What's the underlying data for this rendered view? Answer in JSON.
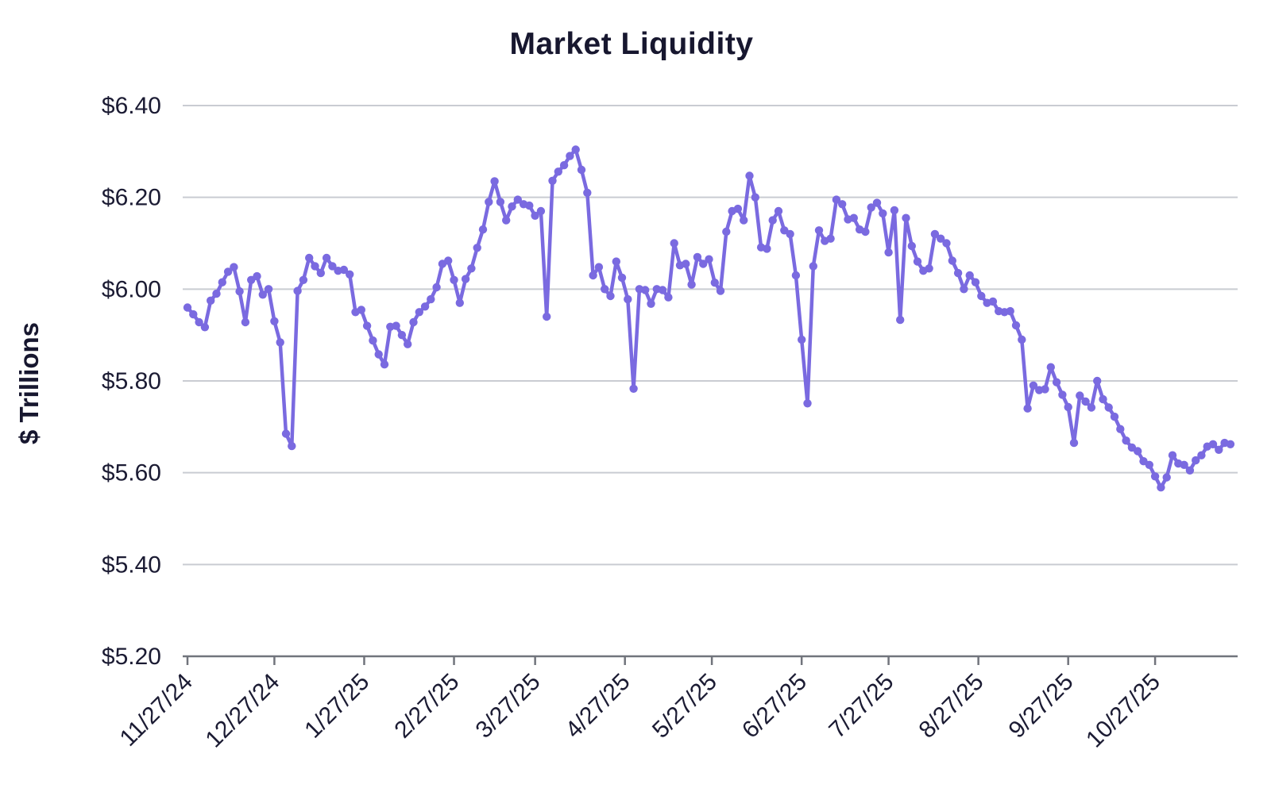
{
  "title": "Market Liquidity",
  "y_axis": {
    "label": "$ Trillions",
    "tick_labels": [
      "$6.40",
      "$6.20",
      "$6.00",
      "$5.80",
      "$5.60",
      "$5.40",
      "$5.20"
    ],
    "tick_values": [
      6.4,
      6.2,
      6.0,
      5.8,
      5.6,
      5.4,
      5.2
    ]
  },
  "x_axis": {
    "tick_labels": [
      "11/27/24",
      "12/27/24",
      "1/27/25",
      "2/27/25",
      "3/27/25",
      "4/27/25",
      "5/27/25",
      "6/27/25",
      "7/27/25",
      "8/27/25",
      "9/27/25",
      "10/27/25"
    ]
  },
  "colors": {
    "line": "#7A6AE0",
    "marker": "#7A6AE0",
    "title_text": "#17172F",
    "tick_text": "#1B1B33",
    "grid": "#C9CCD2",
    "axis": "#71747C",
    "background": "#FFFFFF"
  },
  "chart_data": {
    "type": "line",
    "title": "Market Liquidity",
    "xlabel": "",
    "ylabel": "$ Trillions",
    "unit": "USD trillions",
    "ylim": [
      5.2,
      6.4
    ],
    "grid": true,
    "legend": "none",
    "marker": "circle",
    "x_start_label": "11/27/24",
    "x_point_interval_days": 2,
    "x_tick_labels": [
      "11/27/24",
      "12/27/24",
      "1/27/25",
      "2/27/25",
      "3/27/25",
      "4/27/25",
      "5/27/25",
      "6/27/25",
      "7/27/25",
      "8/27/25",
      "9/27/25",
      "10/27/25"
    ],
    "x_tick_day_offsets": [
      0,
      30,
      61,
      92,
      120,
      151,
      181,
      212,
      242,
      273,
      304,
      334
    ],
    "series": [
      {
        "name": "Market Liquidity",
        "values": [
          5.96,
          5.945,
          5.928,
          5.917,
          5.975,
          5.99,
          6.015,
          6.038,
          6.048,
          5.995,
          5.928,
          6.02,
          6.028,
          5.988,
          6.0,
          5.93,
          5.884,
          5.685,
          5.658,
          5.996,
          6.02,
          6.068,
          6.05,
          6.035,
          6.068,
          6.05,
          6.04,
          6.042,
          6.032,
          5.95,
          5.955,
          5.92,
          5.888,
          5.858,
          5.836,
          5.918,
          5.92,
          5.9,
          5.88,
          5.928,
          5.95,
          5.962,
          5.978,
          6.004,
          6.055,
          6.062,
          6.02,
          5.97,
          6.022,
          6.045,
          6.09,
          6.13,
          6.19,
          6.235,
          6.19,
          6.15,
          6.18,
          6.195,
          6.185,
          6.182,
          6.16,
          6.17,
          5.94,
          6.236,
          6.256,
          6.27,
          6.29,
          6.304,
          6.26,
          6.21,
          6.03,
          6.048,
          6.0,
          5.985,
          6.06,
          6.025,
          5.978,
          5.783,
          6.0,
          5.998,
          5.968,
          6.0,
          5.998,
          5.982,
          6.1,
          6.052,
          6.055,
          6.01,
          6.07,
          6.055,
          6.065,
          6.014,
          5.996,
          6.125,
          6.17,
          6.175,
          6.15,
          6.247,
          6.2,
          6.091,
          6.088,
          6.15,
          6.17,
          6.128,
          6.12,
          6.03,
          5.89,
          5.751,
          6.05,
          6.128,
          6.105,
          6.11,
          6.195,
          6.185,
          6.152,
          6.155,
          6.13,
          6.125,
          6.178,
          6.188,
          6.165,
          6.08,
          6.172,
          5.933,
          6.155,
          6.094,
          6.06,
          6.04,
          6.045,
          6.12,
          6.11,
          6.1,
          6.062,
          6.035,
          6.0,
          6.03,
          6.015,
          5.985,
          5.97,
          5.973,
          5.952,
          5.95,
          5.952,
          5.921,
          5.89,
          5.74,
          5.79,
          5.78,
          5.782,
          5.83,
          5.797,
          5.77,
          5.743,
          5.665,
          5.768,
          5.755,
          5.742,
          5.8,
          5.76,
          5.742,
          5.722,
          5.695,
          5.67,
          5.655,
          5.647,
          5.625,
          5.617,
          5.592,
          5.568,
          5.59,
          5.638,
          5.62,
          5.617,
          5.605,
          5.627,
          5.638,
          5.657,
          5.662,
          5.65,
          5.665,
          5.662
        ]
      }
    ]
  }
}
